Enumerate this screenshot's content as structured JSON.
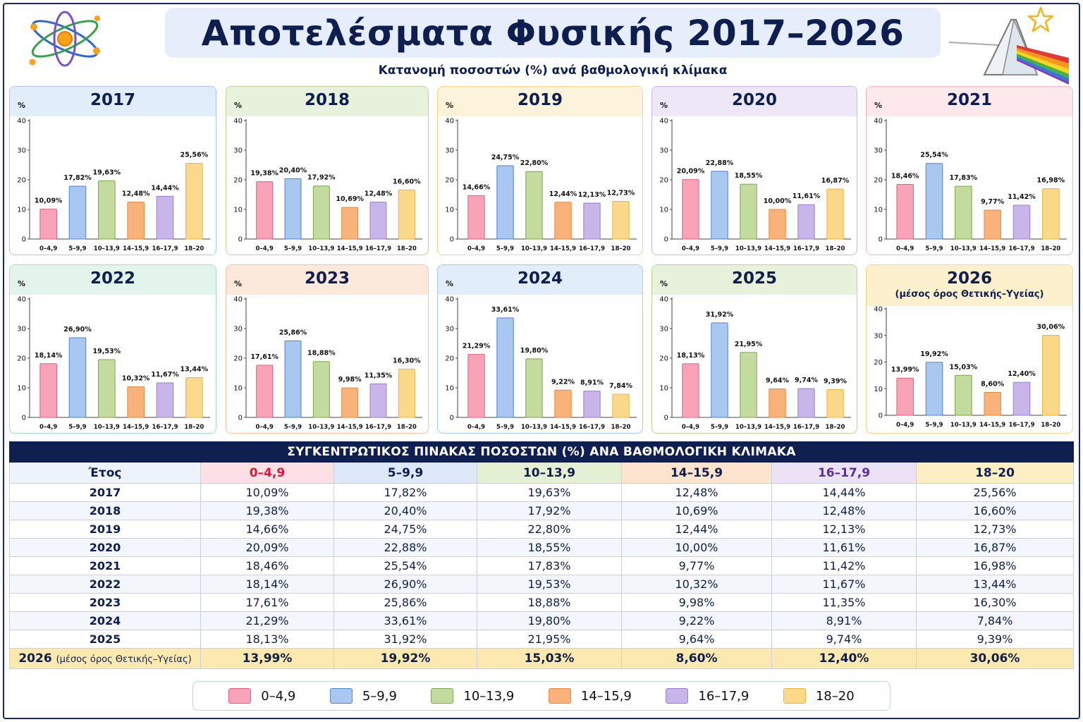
{
  "title": "Αποτελέσματα Φυσικής 2017–2026",
  "subtitle": "Κατανομή ποσοστών (%) ανά βαθμολογική κλίμακα",
  "colors": {
    "bins": [
      "#f9a3b8",
      "#a9c7ef",
      "#c3db9e",
      "#f9b27a",
      "#c9b6e8",
      "#fbd98a"
    ],
    "bin_borders": [
      "#e0607f",
      "#4f83cf",
      "#7ea649",
      "#e6883d",
      "#9a7ccd",
      "#e8b53d"
    ],
    "header_bg": [
      "#fde0e6",
      "#dde8f8",
      "#e4efd4",
      "#fde4cf",
      "#ebe2f6",
      "#fcefc4"
    ],
    "header_text": [
      "#d4183d",
      "#0e1f4f",
      "#0e1f4f",
      "#0e1f4f",
      "#5a2f9c",
      "#0e1f4f"
    ],
    "panel_border": [
      "#a9c7ef",
      "#b9d39a",
      "#f5d58a",
      "#c9b6e8",
      "#f4b5c4",
      "#a8dcc7",
      "#f8c2a0",
      "#a9c7ef",
      "#b9d39a",
      "#f5d58a"
    ],
    "panel_head": [
      "#e2edfb",
      "#e7f1dc",
      "#fdf3da",
      "#eee7f8",
      "#fde8ec",
      "#e2f4ec",
      "#fde9dc",
      "#e2edfb",
      "#e7f1dc",
      "#fdf0cd"
    ]
  },
  "chart_data": [
    {
      "type": "bar",
      "title": "2017",
      "subtitle": "",
      "ylabel": "%",
      "ylim": [
        0,
        40
      ],
      "yticks": [
        0,
        10,
        20,
        30,
        40
      ],
      "categories": [
        "0–4,9",
        "5–9,9",
        "10–13,9",
        "14–15,9",
        "16–17,9",
        "18–20"
      ],
      "values": [
        10.09,
        17.82,
        19.63,
        12.48,
        14.44,
        25.56
      ],
      "labels": [
        "10,09%",
        "17,82%",
        "19,63%",
        "12,48%",
        "14,44%",
        "25,56%"
      ]
    },
    {
      "type": "bar",
      "title": "2018",
      "subtitle": "",
      "ylabel": "%",
      "ylim": [
        0,
        40
      ],
      "yticks": [
        0,
        10,
        20,
        30,
        40
      ],
      "categories": [
        "0–4,9",
        "5–9,9",
        "10–13,9",
        "14–15,9",
        "16–17,9",
        "18–20"
      ],
      "values": [
        19.38,
        20.4,
        17.92,
        10.69,
        12.48,
        16.6
      ],
      "labels": [
        "19,38%",
        "20,40%",
        "17,92%",
        "10,69%",
        "12,48%",
        "16,60%"
      ]
    },
    {
      "type": "bar",
      "title": "2019",
      "subtitle": "",
      "ylabel": "%",
      "ylim": [
        0,
        40
      ],
      "yticks": [
        0,
        10,
        20,
        30,
        40
      ],
      "categories": [
        "0–4,9",
        "5–9,9",
        "10–13,9",
        "14–15,9",
        "16–17,9",
        "18–20"
      ],
      "values": [
        14.66,
        24.75,
        22.8,
        12.44,
        12.13,
        12.73
      ],
      "labels": [
        "14,66%",
        "24,75%",
        "22,80%",
        "12,44%",
        "12,13%",
        "12,73%"
      ]
    },
    {
      "type": "bar",
      "title": "2020",
      "subtitle": "",
      "ylabel": "%",
      "ylim": [
        0,
        40
      ],
      "yticks": [
        0,
        10,
        20,
        30,
        40
      ],
      "categories": [
        "0–4,9",
        "5–9,9",
        "10–13,9",
        "14–15,9",
        "16–17,9",
        "18–20"
      ],
      "values": [
        20.09,
        22.88,
        18.55,
        10.0,
        11.61,
        16.87
      ],
      "labels": [
        "20,09%",
        "22,88%",
        "18,55%",
        "10,00%",
        "11,61%",
        "16,87%"
      ]
    },
    {
      "type": "bar",
      "title": "2021",
      "subtitle": "",
      "ylabel": "%",
      "ylim": [
        0,
        40
      ],
      "yticks": [
        0,
        10,
        20,
        30,
        40
      ],
      "categories": [
        "0–4,9",
        "5–9,9",
        "10–13,9",
        "14–15,9",
        "16–17,9",
        "18–20"
      ],
      "values": [
        18.46,
        25.54,
        17.83,
        9.77,
        11.42,
        16.98
      ],
      "labels": [
        "18,46%",
        "25,54%",
        "17,83%",
        "9,77%",
        "11,42%",
        "16,98%"
      ]
    },
    {
      "type": "bar",
      "title": "2022",
      "subtitle": "",
      "ylabel": "%",
      "ylim": [
        0,
        40
      ],
      "yticks": [
        0,
        10,
        20,
        30,
        40
      ],
      "categories": [
        "0–4,9",
        "5–9,9",
        "10–13,9",
        "14–15,9",
        "16–17,9",
        "18–20"
      ],
      "values": [
        18.14,
        26.9,
        19.53,
        10.32,
        11.67,
        13.44
      ],
      "labels": [
        "18,14%",
        "26,90%",
        "19,53%",
        "10,32%",
        "11,67%",
        "13,44%"
      ]
    },
    {
      "type": "bar",
      "title": "2023",
      "subtitle": "",
      "ylabel": "%",
      "ylim": [
        0,
        40
      ],
      "yticks": [
        0,
        10,
        20,
        30,
        40
      ],
      "categories": [
        "0–4,9",
        "5–9,9",
        "10–13,9",
        "14–15,9",
        "16–17,9",
        "18–20"
      ],
      "values": [
        17.61,
        25.86,
        18.88,
        9.98,
        11.35,
        16.3
      ],
      "labels": [
        "17,61%",
        "25,86%",
        "18,88%",
        "9,98%",
        "11,35%",
        "16,30%"
      ]
    },
    {
      "type": "bar",
      "title": "2024",
      "subtitle": "",
      "ylabel": "%",
      "ylim": [
        0,
        40
      ],
      "yticks": [
        0,
        10,
        20,
        30,
        40
      ],
      "categories": [
        "0–4,9",
        "5–9,9",
        "10–13,9",
        "14–15,9",
        "16–17,9",
        "18–20"
      ],
      "values": [
        21.29,
        33.61,
        19.8,
        9.22,
        8.91,
        7.84
      ],
      "labels": [
        "21,29%",
        "33,61%",
        "19,80%",
        "9,22%",
        "8,91%",
        "7,84%"
      ]
    },
    {
      "type": "bar",
      "title": "2025",
      "subtitle": "",
      "ylabel": "%",
      "ylim": [
        0,
        40
      ],
      "yticks": [
        0,
        10,
        20,
        30,
        40
      ],
      "categories": [
        "0–4,9",
        "5–9,9",
        "10–13,9",
        "14–15,9",
        "16–17,9",
        "18–20"
      ],
      "values": [
        18.13,
        31.92,
        21.95,
        9.64,
        9.74,
        9.39
      ],
      "labels": [
        "18,13%",
        "31,92%",
        "21,95%",
        "9,64%",
        "9,74%",
        "9,39%"
      ]
    },
    {
      "type": "bar",
      "title": "2026",
      "subtitle": "(μέσος όρος Θετικής–Υγείας)",
      "ylabel": "",
      "ylim": [
        0,
        40
      ],
      "yticks": [
        0,
        10,
        20,
        30,
        40
      ],
      "categories": [
        "0–4,9",
        "5–9,9",
        "10–13,9",
        "14–15,9",
        "16–17,9",
        "18–20"
      ],
      "values": [
        13.99,
        19.92,
        15.03,
        8.6,
        12.4,
        30.06
      ],
      "labels": [
        "13,99%",
        "19,92%",
        "15,03%",
        "8,60%",
        "12,40%",
        "30,06%"
      ]
    }
  ],
  "table": {
    "title": "ΣΥΓΚΕΝΤΡΩΤΙΚΟΣ ΠΙΝΑΚΑΣ ΠΟΣΟΣΤΩΝ (%) ΑΝΑ ΒΑΘΜΟΛΟΓΙΚΗ ΚΛΙΜΑΚΑ",
    "year_header": "Έτος",
    "columns": [
      "0–4,9",
      "5–9,9",
      "10–13,9",
      "14–15,9",
      "16–17,9",
      "18–20"
    ],
    "rows": [
      {
        "year": "2017",
        "note": "",
        "cells": [
          "10,09%",
          "17,82%",
          "19,63%",
          "12,48%",
          "14,44%",
          "25,56%"
        ]
      },
      {
        "year": "2018",
        "note": "",
        "cells": [
          "19,38%",
          "20,40%",
          "17,92%",
          "10,69%",
          "12,48%",
          "16,60%"
        ]
      },
      {
        "year": "2019",
        "note": "",
        "cells": [
          "14,66%",
          "24,75%",
          "22,80%",
          "12,44%",
          "12,13%",
          "12,73%"
        ]
      },
      {
        "year": "2020",
        "note": "",
        "cells": [
          "20,09%",
          "22,88%",
          "18,55%",
          "10,00%",
          "11,61%",
          "16,87%"
        ]
      },
      {
        "year": "2021",
        "note": "",
        "cells": [
          "18,46%",
          "25,54%",
          "17,83%",
          "9,77%",
          "11,42%",
          "16,98%"
        ]
      },
      {
        "year": "2022",
        "note": "",
        "cells": [
          "18,14%",
          "26,90%",
          "19,53%",
          "10,32%",
          "11,67%",
          "13,44%"
        ]
      },
      {
        "year": "2023",
        "note": "",
        "cells": [
          "17,61%",
          "25,86%",
          "18,88%",
          "9,98%",
          "11,35%",
          "16,30%"
        ]
      },
      {
        "year": "2024",
        "note": "",
        "cells": [
          "21,29%",
          "33,61%",
          "19,80%",
          "9,22%",
          "8,91%",
          "7,84%"
        ]
      },
      {
        "year": "2025",
        "note": "",
        "cells": [
          "18,13%",
          "31,92%",
          "21,95%",
          "9,64%",
          "9,74%",
          "9,39%"
        ]
      },
      {
        "year": "2026",
        "note": "(μέσος όρος Θετικής–Υγείας)",
        "cells": [
          "13,99%",
          "19,92%",
          "15,03%",
          "8,60%",
          "12,40%",
          "30,06%"
        ]
      }
    ]
  },
  "legend": [
    "0–4,9",
    "5–9,9",
    "10–13,9",
    "14–15,9",
    "16–17,9",
    "18–20"
  ],
  "icons": {
    "top_left": "atom-icon",
    "top_right": "prism-icon",
    "star": "star-icon"
  }
}
